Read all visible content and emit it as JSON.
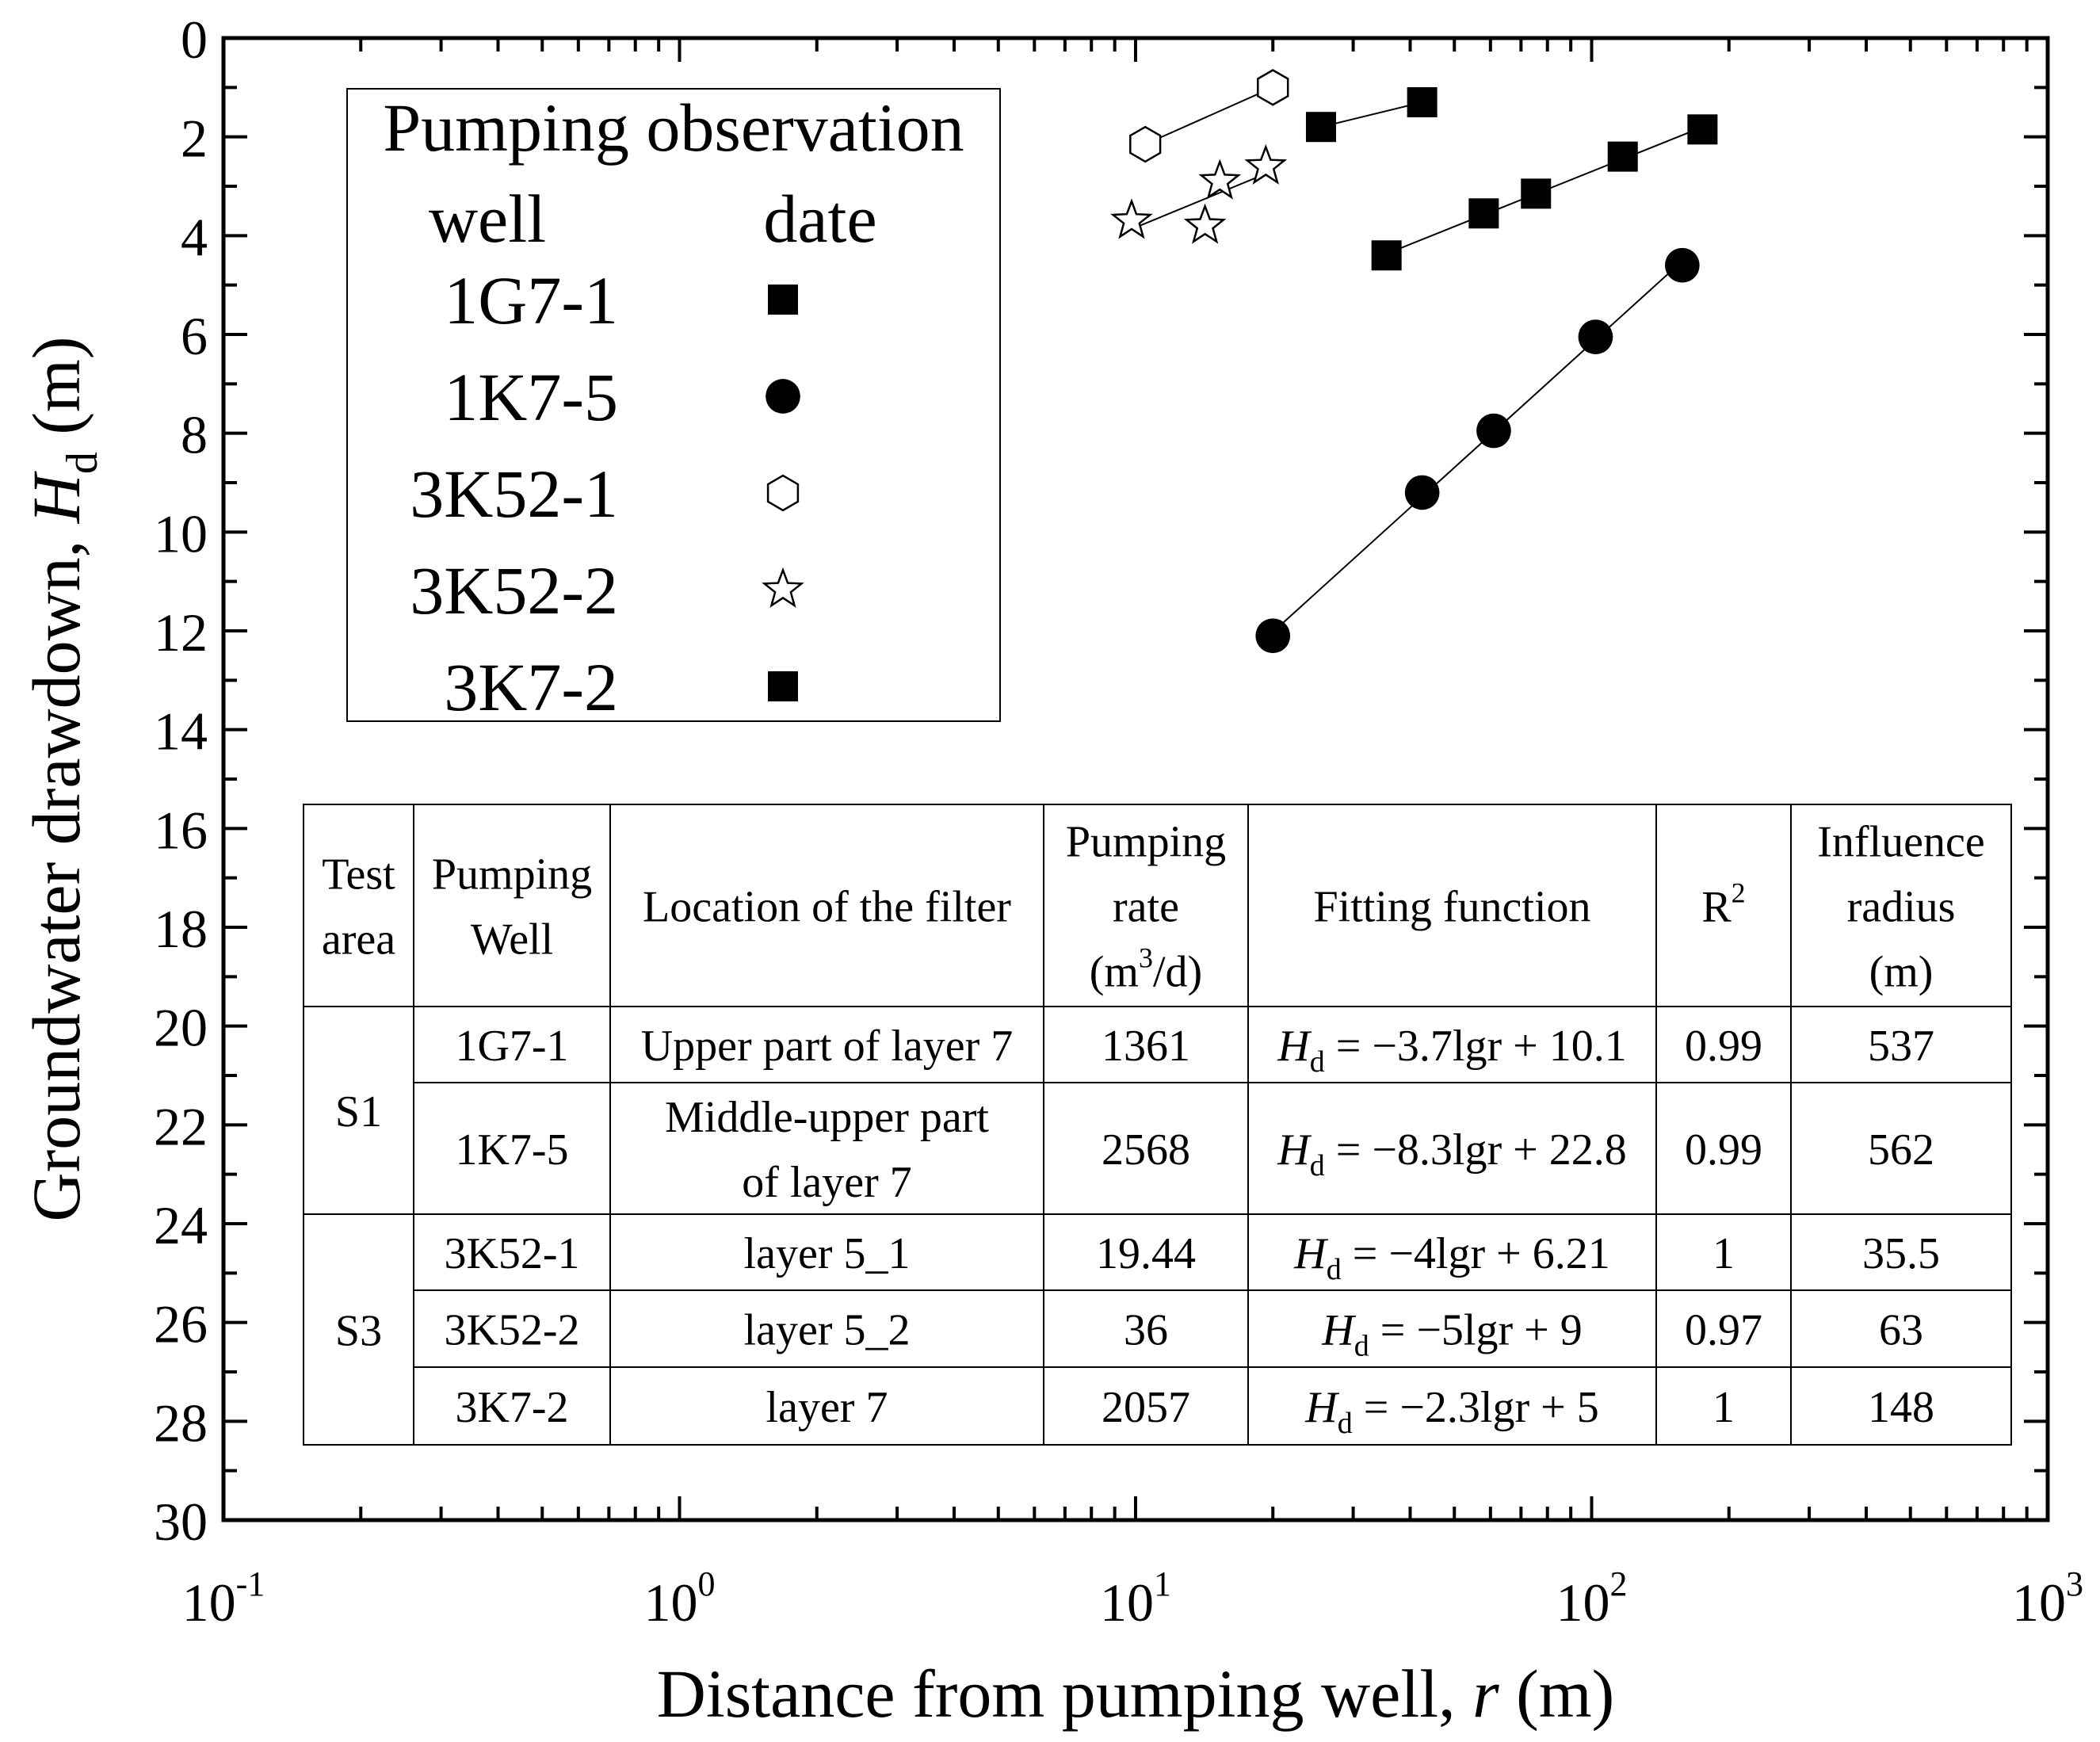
{
  "chart_data": {
    "type": "scatter",
    "title": "",
    "xlabel": {
      "prefix": "Distance from pumping well, ",
      "var": "r",
      "suffix": " (m)"
    },
    "ylabel": {
      "prefix": "Groundwater drawdown, ",
      "var": "H",
      "sub": "d",
      "suffix": " (m)"
    },
    "x_scale": "log",
    "xlim": [
      0.1,
      1000
    ],
    "ylim": [
      0,
      30
    ],
    "y_inverted": true,
    "y_ticks": [
      "0",
      "2",
      "4",
      "6",
      "8",
      "10",
      "12",
      "14",
      "16",
      "18",
      "20",
      "22",
      "24",
      "26",
      "28",
      "30"
    ],
    "x_ticks": [
      {
        "base": "10",
        "exp": "-1"
      },
      {
        "base": "10",
        "exp": "0"
      },
      {
        "base": "10",
        "exp": "1"
      },
      {
        "base": "10",
        "exp": "2"
      },
      {
        "base": "10",
        "exp": "3"
      }
    ],
    "legend": {
      "title": "Pumping observation",
      "col_well": "well",
      "col_date": "date",
      "position": "top-left"
    },
    "series": [
      {
        "name": "1G7-1",
        "marker": "square",
        "x": [
          25.5,
          42.5
        ],
        "y": [
          1.8,
          1.3
        ]
      },
      {
        "name": "1K7-5",
        "marker": "circle",
        "x": [
          20,
          42.5,
          61,
          102,
          158
        ],
        "y": [
          12.1,
          9.2,
          7.95,
          6.05,
          4.6
        ]
      },
      {
        "name": "3K52-1",
        "marker": "hexagon",
        "x": [
          10.5,
          20
        ],
        "y": [
          2.15,
          1.0
        ]
      },
      {
        "name": "3K52-2",
        "marker": "star",
        "x": [
          9.8,
          14.2,
          15.3,
          19.3
        ],
        "y": [
          3.7,
          3.8,
          2.9,
          2.6
        ]
      },
      {
        "name": "3K7-2",
        "marker": "square",
        "x": [
          35.5,
          58,
          75.5,
          117,
          175
        ],
        "y": [
          4.4,
          3.55,
          3.15,
          2.4,
          1.85
        ]
      }
    ]
  },
  "table": {
    "headers": {
      "area": [
        "Test",
        "area"
      ],
      "well": [
        "Pumping",
        "Well"
      ],
      "filter": [
        "Location of the filter"
      ],
      "rate": {
        "l1": "Pumping",
        "l2": "rate",
        "l3a": "(m",
        "l3sup": "3",
        "l3b": "/d)"
      },
      "fitting": [
        "Fitting function"
      ],
      "r2": {
        "base": "R",
        "sup": "2"
      },
      "radius": [
        "Influence",
        "radius",
        "(m)"
      ]
    },
    "groups": [
      "S1",
      "S3"
    ],
    "rows": [
      {
        "well": "1G7-1",
        "filter": [
          "Upper part of layer 7"
        ],
        "rate": "1361",
        "fit_var": "H",
        "fit_sub": "d",
        "fit_rest": " = −3.7lgr + 10.1",
        "r2": "0.99",
        "radius": "537"
      },
      {
        "well": "1K7-5",
        "filter": [
          "Middle-upper part",
          "of layer 7"
        ],
        "rate": "2568",
        "fit_var": "H",
        "fit_sub": "d",
        "fit_rest": " = −8.3lgr + 22.8",
        "r2": "0.99",
        "radius": "562"
      },
      {
        "well": "3K52-1",
        "filter": [
          "layer 5_1"
        ],
        "rate": "19.44",
        "fit_var": "H",
        "fit_sub": "d",
        "fit_rest": " = −4lgr + 6.21",
        "r2": "1",
        "radius": "35.5"
      },
      {
        "well": "3K52-2",
        "filter": [
          "layer 5_2"
        ],
        "rate": "36",
        "fit_var": "H",
        "fit_sub": "d",
        "fit_rest": " = −5lgr + 9",
        "r2": "0.97",
        "radius": "63"
      },
      {
        "well": "3K7-2",
        "filter": [
          "layer 7"
        ],
        "rate": "2057",
        "fit_var": "H",
        "fit_sub": "d",
        "fit_rest": " = −2.3lgr + 5",
        "r2": "1",
        "radius": "148"
      }
    ]
  }
}
